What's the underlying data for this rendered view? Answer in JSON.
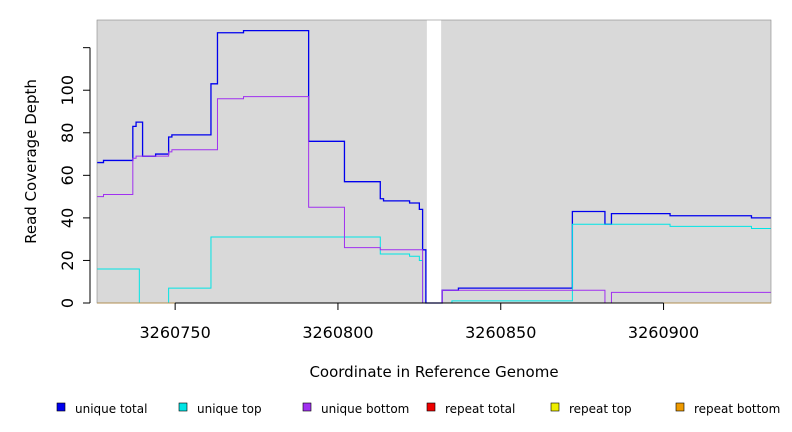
{
  "chart_data": {
    "type": "line",
    "xlabel": "Coordinate in Reference Genome",
    "ylabel": "Read Coverage Depth",
    "xlim": [
      3260726,
      3260933
    ],
    "ylim": [
      0,
      133
    ],
    "x_ticks": [
      3260750,
      3260800,
      3260850,
      3260900
    ],
    "y_ticks": [
      0,
      20,
      40,
      60,
      80,
      100,
      120
    ],
    "y_tick_labels": [
      "0",
      "20",
      "40",
      "60",
      "80",
      "100",
      ""
    ],
    "background_color": "#d9d9d9",
    "grid": false,
    "legend_position": "bottom",
    "gaps": [
      [
        3260827,
        3260832
      ]
    ],
    "series": [
      {
        "name": "unique total",
        "color": "#0000ee",
        "steps": [
          [
            3260726,
            66
          ],
          [
            3260728,
            67
          ],
          [
            3260737,
            83
          ],
          [
            3260738,
            85
          ],
          [
            3260740,
            69
          ],
          [
            3260744,
            70
          ],
          [
            3260748,
            78
          ],
          [
            3260749,
            79
          ],
          [
            3260761,
            103
          ],
          [
            3260763,
            127
          ],
          [
            3260771,
            128
          ],
          [
            3260791,
            76
          ],
          [
            3260802,
            57
          ],
          [
            3260813,
            49
          ],
          [
            3260814,
            48
          ],
          [
            3260822,
            47
          ],
          [
            3260825,
            44
          ],
          [
            3260826,
            25
          ],
          [
            3260827,
            0
          ],
          [
            3260832,
            6
          ],
          [
            3260837,
            7
          ],
          [
            3260872,
            43
          ],
          [
            3260882,
            37
          ],
          [
            3260884,
            42
          ],
          [
            3260902,
            41
          ],
          [
            3260927,
            40
          ]
        ],
        "x_end": 3260933
      },
      {
        "name": "unique top",
        "color": "#00e5e5",
        "steps": [
          [
            3260726,
            16
          ],
          [
            3260739,
            0
          ],
          [
            3260748,
            7
          ],
          [
            3260761,
            31
          ],
          [
            3260813,
            23
          ],
          [
            3260822,
            22
          ],
          [
            3260825,
            20
          ],
          [
            3260826,
            0
          ],
          [
            3260835,
            1
          ],
          [
            3260872,
            37
          ],
          [
            3260902,
            36
          ],
          [
            3260927,
            35
          ]
        ],
        "x_end": 3260933
      },
      {
        "name": "unique bottom",
        "color": "#a030f0",
        "steps": [
          [
            3260726,
            50
          ],
          [
            3260728,
            51
          ],
          [
            3260737,
            68
          ],
          [
            3260738,
            69
          ],
          [
            3260748,
            71
          ],
          [
            3260749,
            72
          ],
          [
            3260763,
            96
          ],
          [
            3260771,
            97
          ],
          [
            3260791,
            45
          ],
          [
            3260802,
            26
          ],
          [
            3260813,
            25
          ],
          [
            3260826,
            0
          ],
          [
            3260832,
            6
          ],
          [
            3260882,
            0
          ],
          [
            3260884,
            5
          ]
        ],
        "x_end": 3260933
      },
      {
        "name": "repeat total",
        "color": "#ee0000",
        "steps": [
          [
            3260726,
            0
          ]
        ],
        "x_end": 3260933
      },
      {
        "name": "repeat top",
        "color": "#eeee00",
        "steps": [
          [
            3260726,
            0
          ]
        ],
        "x_end": 3260933
      },
      {
        "name": "repeat bottom",
        "color": "#ee9a00",
        "steps": [
          [
            3260726,
            0
          ]
        ],
        "x_end": 3260933
      }
    ]
  }
}
